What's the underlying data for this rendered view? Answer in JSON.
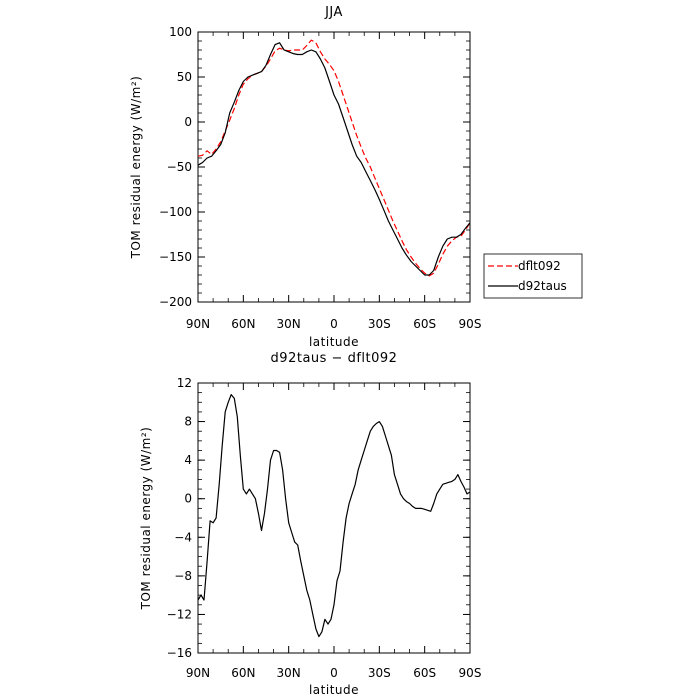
{
  "chart_data": [
    {
      "type": "line",
      "title": "JJA",
      "xlabel": "latitude",
      "ylabel": "TOM residual energy (W/m²)",
      "xlim": [
        -90,
        90
      ],
      "ylim": [
        -200,
        100
      ],
      "xticks": [
        -90,
        -60,
        -30,
        0,
        30,
        60,
        90
      ],
      "xtick_labels": [
        "90N",
        "60N",
        "30N",
        "0",
        "30S",
        "60S",
        "90S"
      ],
      "yticks": [
        100,
        50,
        0,
        -50,
        -100,
        -150,
        -200
      ],
      "ytick_labels": [
        "100",
        "50",
        "0",
        "−50",
        "−100",
        "−150",
        "−200"
      ],
      "legend_position": "right",
      "series": [
        {
          "name": "dflt092",
          "color": "#ff0000",
          "dash": "dashed",
          "x": [
            -90,
            -87,
            -84,
            -81,
            -78,
            -75,
            -72,
            -69,
            -66,
            -63,
            -60,
            -57,
            -54,
            -51,
            -48,
            -45,
            -42,
            -39,
            -36,
            -33,
            -30,
            -27,
            -24,
            -21,
            -18,
            -15,
            -12,
            -9,
            -6,
            -3,
            0,
            3,
            6,
            9,
            12,
            15,
            18,
            21,
            24,
            27,
            30,
            33,
            36,
            39,
            42,
            45,
            48,
            51,
            54,
            57,
            60,
            63,
            66,
            69,
            72,
            75,
            78,
            81,
            84,
            87,
            90
          ],
          "y": [
            -38,
            -37,
            -32,
            -36,
            -30,
            -22,
            -10,
            2,
            15,
            30,
            42,
            48,
            52,
            54,
            56,
            62,
            70,
            79,
            82,
            80,
            79,
            80,
            80,
            80,
            85,
            91,
            88,
            78,
            70,
            64,
            57,
            45,
            30,
            15,
            0,
            -15,
            -28,
            -40,
            -50,
            -62,
            -74,
            -86,
            -98,
            -110,
            -121,
            -132,
            -142,
            -150,
            -157,
            -163,
            -168,
            -171,
            -168,
            -158,
            -147,
            -138,
            -132,
            -128,
            -127,
            -120,
            -112
          ]
        },
        {
          "name": "d92taus",
          "color": "#000000",
          "dash": "solid",
          "x": [
            -90,
            -87,
            -84,
            -81,
            -78,
            -75,
            -72,
            -69,
            -66,
            -63,
            -60,
            -57,
            -54,
            -51,
            -48,
            -45,
            -42,
            -39,
            -36,
            -33,
            -30,
            -27,
            -24,
            -21,
            -18,
            -15,
            -12,
            -9,
            -6,
            -3,
            0,
            3,
            6,
            9,
            12,
            15,
            18,
            21,
            24,
            27,
            30,
            33,
            36,
            39,
            42,
            45,
            48,
            51,
            54,
            57,
            60,
            63,
            66,
            69,
            72,
            75,
            78,
            81,
            84,
            87,
            90
          ],
          "y": [
            -48,
            -45,
            -40,
            -38,
            -32,
            -25,
            -12,
            10,
            22,
            35,
            45,
            50,
            52,
            54,
            56,
            63,
            75,
            86,
            88,
            80,
            78,
            76,
            75,
            75,
            78,
            80,
            78,
            70,
            60,
            45,
            30,
            20,
            5,
            -10,
            -25,
            -38,
            -45,
            -55,
            -65,
            -75,
            -86,
            -98,
            -110,
            -120,
            -130,
            -140,
            -148,
            -155,
            -160,
            -165,
            -170,
            -170,
            -165,
            -150,
            -138,
            -130,
            -128,
            -128,
            -125,
            -118,
            -112
          ]
        }
      ]
    },
    {
      "type": "line",
      "title": "d92taus − dflt092",
      "xlabel": "latitude",
      "ylabel": "TOM residual energy (W/m²)",
      "xlim": [
        -90,
        90
      ],
      "ylim": [
        -16,
        12
      ],
      "xticks": [
        -90,
        -60,
        -30,
        0,
        30,
        60,
        90
      ],
      "xtick_labels": [
        "90N",
        "60N",
        "30N",
        "0",
        "30S",
        "60S",
        "90S"
      ],
      "yticks": [
        12,
        8,
        4,
        0,
        -4,
        -8,
        -12,
        -16
      ],
      "ytick_labels": [
        "12",
        "8",
        "4",
        "0",
        "−4",
        "−8",
        "−12",
        "−16"
      ],
      "series": [
        {
          "color": "#000000",
          "dash": "solid",
          "x": [
            -90,
            -88,
            -86,
            -84,
            -82,
            -80,
            -78,
            -76,
            -74,
            -72,
            -70,
            -68,
            -66,
            -64,
            -62,
            -60,
            -58,
            -56,
            -54,
            -52,
            -50,
            -48,
            -46,
            -44,
            -42,
            -40,
            -38,
            -36,
            -34,
            -32,
            -30,
            -28,
            -26,
            -24,
            -22,
            -20,
            -18,
            -16,
            -14,
            -12,
            -10,
            -8,
            -6,
            -4,
            -2,
            0,
            2,
            4,
            6,
            8,
            10,
            12,
            14,
            16,
            18,
            20,
            22,
            24,
            26,
            28,
            30,
            32,
            34,
            36,
            38,
            40,
            42,
            44,
            46,
            48,
            50,
            52,
            54,
            56,
            58,
            60,
            62,
            64,
            66,
            68,
            70,
            72,
            74,
            76,
            78,
            80,
            82,
            84,
            86,
            88,
            90
          ],
          "y": [
            -10.5,
            -10.0,
            -10.5,
            -6.5,
            -2.3,
            -2.5,
            -2.0,
            1.5,
            5.5,
            9.0,
            10.0,
            10.8,
            10.4,
            8.5,
            4.5,
            1.0,
            0.5,
            1.0,
            0.5,
            0.0,
            -1.5,
            -3.3,
            -1.5,
            1.0,
            4.0,
            5.0,
            5.0,
            4.8,
            3.0,
            0.0,
            -2.5,
            -3.5,
            -4.5,
            -4.8,
            -6.5,
            -8.0,
            -9.5,
            -10.5,
            -12.0,
            -13.5,
            -14.3,
            -13.8,
            -12.5,
            -13.0,
            -12.5,
            -11.0,
            -8.5,
            -7.5,
            -4.5,
            -2.0,
            -0.5,
            0.5,
            1.5,
            3.0,
            4.0,
            5.0,
            6.0,
            7.0,
            7.5,
            7.8,
            8.0,
            7.5,
            6.5,
            5.5,
            4.5,
            2.5,
            1.5,
            0.5,
            0.0,
            -0.3,
            -0.5,
            -0.8,
            -1.0,
            -1.0,
            -1.0,
            -1.1,
            -1.2,
            -1.3,
            -0.5,
            0.5,
            1.0,
            1.5,
            1.6,
            1.7,
            1.8,
            2.0,
            2.5,
            1.8,
            1.2,
            0.5,
            0.7
          ]
        }
      ]
    }
  ]
}
